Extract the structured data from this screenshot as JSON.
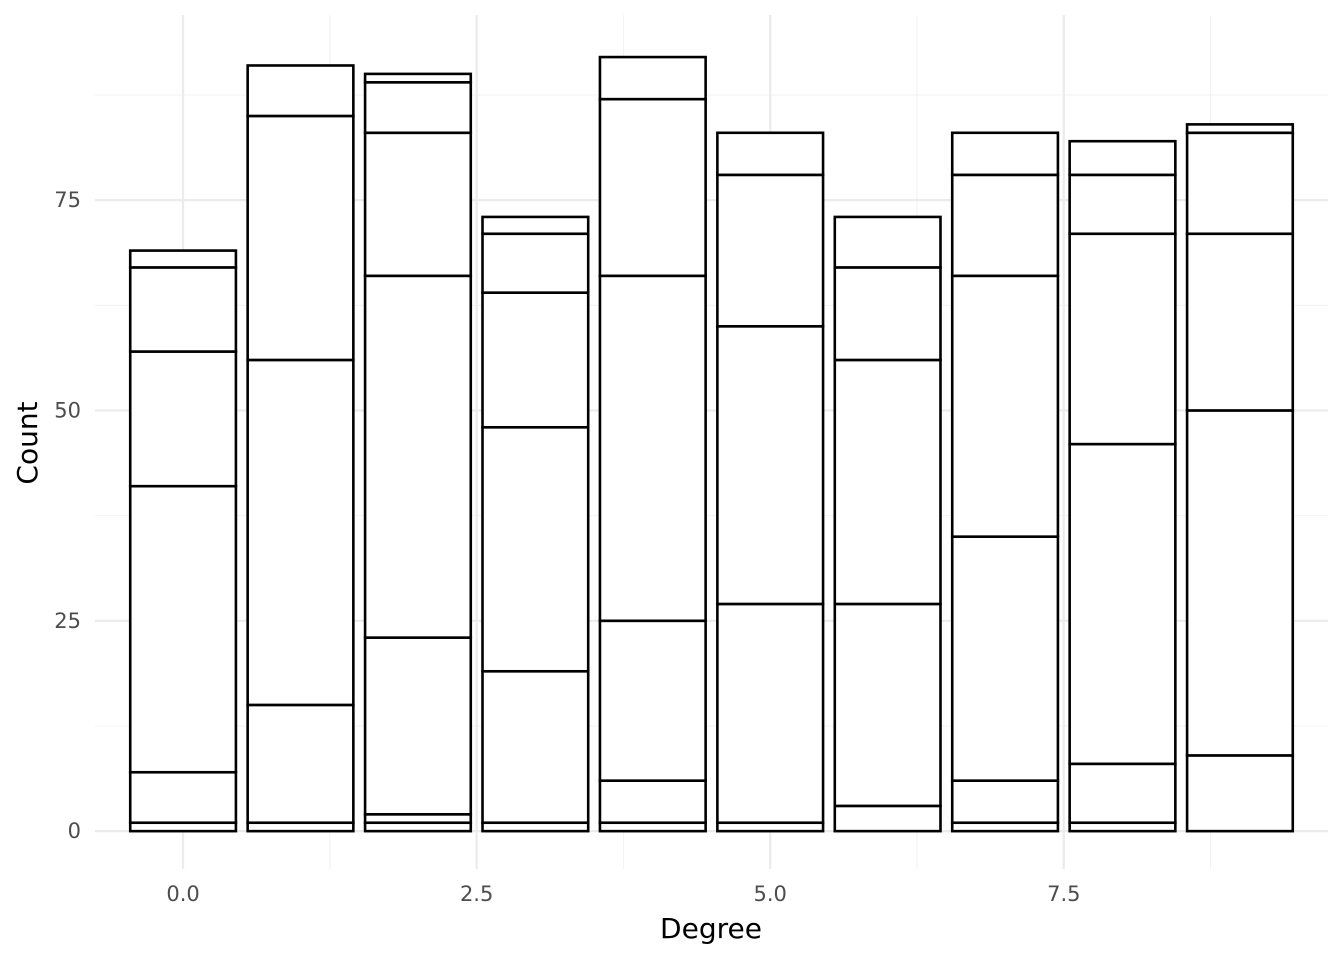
{
  "chart_data": {
    "type": "bar",
    "stacked": true,
    "xlabel": "Degree",
    "ylabel": "Count",
    "grid": true,
    "x": [
      0,
      1,
      2,
      3,
      4,
      5,
      6,
      7,
      8,
      9
    ],
    "xlim": [
      -0.75,
      9.75
    ],
    "ylim": [
      -4.5,
      97
    ],
    "x_ticks": [
      0,
      2.5,
      5,
      7.5
    ],
    "x_tick_labels": [
      "0.0",
      "2.5",
      "5.0",
      "7.5"
    ],
    "y_ticks": [
      0,
      25,
      50,
      75
    ],
    "y_tick_labels": [
      "0",
      "25",
      "50",
      "75"
    ],
    "stack_boundaries": [
      [
        0,
        1,
        7,
        41,
        57,
        67,
        69
      ],
      [
        0,
        1,
        15,
        56,
        85,
        91
      ],
      [
        0,
        1,
        2,
        23,
        66,
        83,
        89,
        90
      ],
      [
        0,
        1,
        19,
        48,
        64,
        71,
        73
      ],
      [
        0,
        1,
        6,
        25,
        66,
        87,
        92
      ],
      [
        0,
        1,
        27,
        60,
        78,
        83
      ],
      [
        0,
        3,
        27,
        56,
        67,
        73
      ],
      [
        0,
        1,
        6,
        35,
        66,
        78,
        83
      ],
      [
        0,
        1,
        8,
        46,
        71,
        78,
        82
      ],
      [
        0,
        9,
        50,
        71,
        83,
        84
      ]
    ]
  }
}
